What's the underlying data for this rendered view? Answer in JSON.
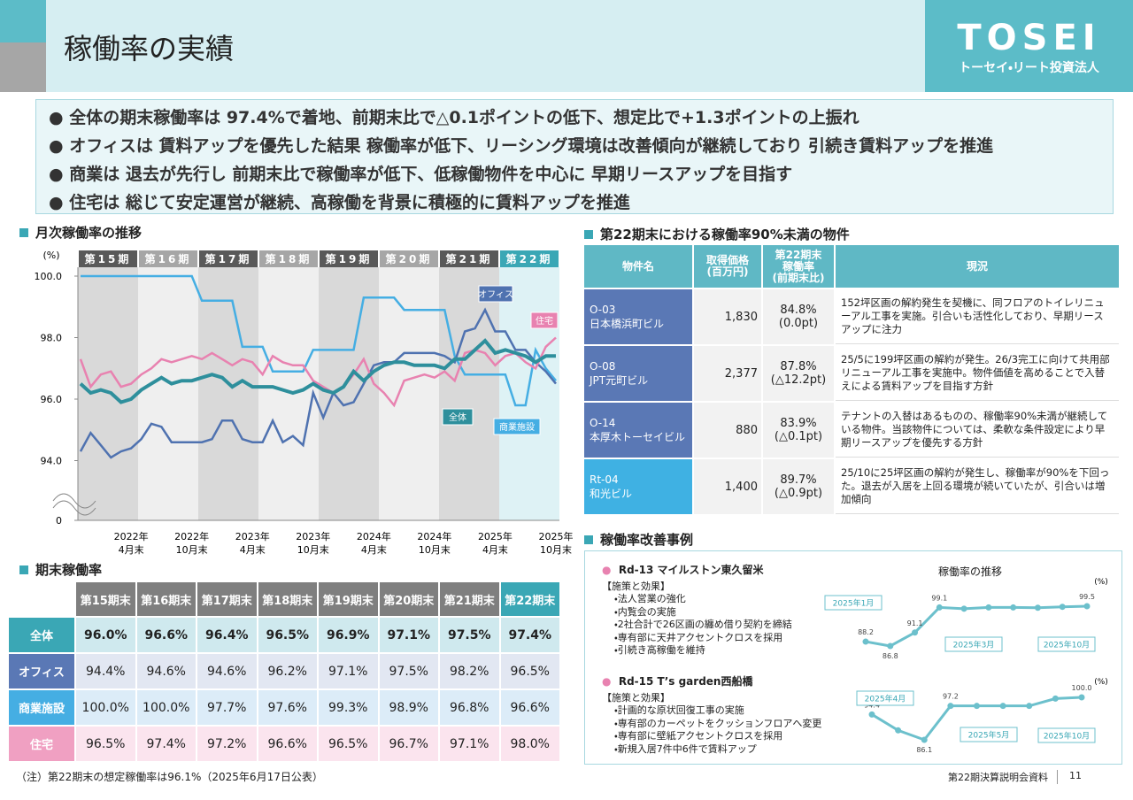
{
  "header": {
    "title": "稼働率の実績",
    "logo": "TOSEI",
    "logo_sub": "トーセイ・リート投資法人"
  },
  "bullets": [
    "全体の期末稼働率は 97.4%で着地、前期末比で△0.1ポイントの低下、想定比で+1.3ポイントの上振れ",
    "オフィスは 賃料アップを優先した結果 稼働率が低下、リーシング環境は改善傾向が継続しており 引続き賃料アップを推進",
    "商業は 退去が先行し 前期末比で稼働率が低下、低稼働物件を中心に 早期リースアップを目指す",
    "住宅は 総じて安定運営が継続、高稼働を背景に積極的に賃料アップを推進"
  ],
  "monthly_chart": {
    "type": "line",
    "title": "月次稼働率の推移",
    "y_unit": "(%)",
    "axis_break": true,
    "periods": [
      "第15期",
      "第16期",
      "第17期",
      "第18期",
      "第19期",
      "第20期",
      "第21期",
      "第22期"
    ],
    "categories": [
      null,
      null,
      null,
      null,
      null,
      "2022年\n4月末",
      null,
      null,
      null,
      null,
      null,
      "2022年\n10月末",
      null,
      null,
      null,
      null,
      null,
      "2023年\n4月末",
      null,
      null,
      null,
      null,
      null,
      "2023年\n10月末",
      null,
      null,
      null,
      null,
      null,
      "2024年\n4月末",
      null,
      null,
      null,
      null,
      null,
      "2024年\n10月末",
      null,
      null,
      null,
      null,
      null,
      "2025年\n4月末",
      null,
      null,
      null,
      null,
      null,
      "2025年\n10月末"
    ],
    "ylim": [
      92,
      100
    ],
    "yticks": [
      {
        "value": 0,
        "label": "0"
      },
      {
        "value": 94,
        "label": "94.0"
      },
      {
        "value": 96,
        "label": "96.0"
      },
      {
        "value": 98,
        "label": "98.0"
      },
      {
        "value": 100,
        "label": "100.0"
      }
    ],
    "series": [
      {
        "name": "商業施設",
        "color": "#45aee3",
        "values": [
          100,
          100,
          100,
          100,
          100,
          100,
          100,
          100,
          100,
          100,
          100,
          100,
          99.2,
          99.2,
          99.2,
          99.2,
          97.7,
          97.7,
          97.7,
          96.9,
          96.9,
          96.9,
          96.9,
          97.6,
          97.6,
          97.6,
          97.6,
          97.6,
          99.3,
          99.3,
          99.3,
          99.3,
          98.9,
          98.9,
          98.9,
          98.9,
          98.9,
          97.4,
          96.8,
          96.8,
          96.8,
          96.8,
          96.8,
          95.8,
          95.8,
          97.6,
          97.0,
          96.6
        ]
      },
      {
        "name": "オフィス",
        "color": "#4f72b0",
        "values": [
          94.3,
          94.9,
          94.5,
          94.1,
          94.3,
          94.4,
          94.7,
          95.2,
          95.1,
          94.6,
          94.6,
          94.6,
          94.6,
          94.7,
          95.3,
          95.3,
          94.7,
          94.6,
          94.6,
          95.3,
          94.6,
          94.8,
          94.5,
          96.2,
          95.4,
          96.2,
          95.8,
          95.9,
          96.5,
          97.1,
          97.2,
          97.2,
          97.5,
          97.5,
          97.5,
          97.5,
          97.4,
          97.2,
          98.2,
          98.3,
          98.9,
          98.2,
          98.2,
          97.6,
          97.6,
          97.2,
          96.9,
          96.5
        ]
      },
      {
        "name": "住宅",
        "color": "#e882b0",
        "values": [
          97.3,
          96.4,
          96.8,
          96.9,
          96.4,
          96.5,
          96.8,
          97.0,
          97.3,
          97.2,
          97.3,
          97.4,
          97.3,
          97.5,
          97.3,
          97.1,
          97.3,
          97.2,
          96.8,
          97.4,
          97.2,
          97.1,
          97.1,
          96.6,
          96.4,
          96.2,
          96.4,
          96.8,
          97.3,
          96.5,
          96.2,
          95.8,
          96.6,
          96.7,
          96.8,
          96.7,
          96.9,
          96.6,
          97.5,
          97.6,
          97.5,
          97.1,
          97.4,
          97.5,
          97.2,
          97.0,
          97.7,
          98.0
        ]
      },
      {
        "name": "全体",
        "color": "#2e8f9c",
        "values": [
          96.5,
          96.2,
          96.3,
          96.2,
          95.9,
          96.0,
          96.3,
          96.5,
          96.7,
          96.5,
          96.6,
          96.6,
          96.7,
          96.8,
          96.7,
          96.4,
          96.6,
          96.4,
          96.4,
          96.4,
          96.3,
          96.2,
          96.3,
          96.5,
          96.3,
          96.2,
          96.4,
          96.9,
          96.6,
          96.9,
          97.1,
          97.2,
          97.2,
          97.1,
          97.1,
          97.1,
          97.0,
          97.3,
          97.3,
          97.6,
          97.9,
          97.5,
          97.6,
          97.5,
          97.4,
          97.2,
          97.4,
          97.4
        ]
      }
    ]
  },
  "period_end_table": {
    "title": "期末稼働率",
    "columns": [
      "第15期末",
      "第16期末",
      "第17期末",
      "第18期末",
      "第19期末",
      "第20期末",
      "第21期末",
      "第22期末"
    ],
    "rows": [
      {
        "label": "全体",
        "values": [
          "96.0%",
          "96.6%",
          "96.4%",
          "96.5%",
          "96.9%",
          "97.1%",
          "97.5%",
          "97.4%"
        ]
      },
      {
        "label": "オフィス",
        "values": [
          "94.4%",
          "94.6%",
          "94.6%",
          "96.2%",
          "97.1%",
          "97.5%",
          "98.2%",
          "96.5%"
        ]
      },
      {
        "label": "商業施設",
        "values": [
          "100.0%",
          "100.0%",
          "97.7%",
          "97.6%",
          "99.3%",
          "98.9%",
          "96.8%",
          "96.6%"
        ]
      },
      {
        "label": "住宅",
        "values": [
          "96.5%",
          "97.4%",
          "97.2%",
          "96.6%",
          "96.5%",
          "96.7%",
          "97.1%",
          "98.0%"
        ]
      }
    ]
  },
  "low_occupancy_table": {
    "title": "第22期末における稼働率90%未満の物件",
    "columns": [
      "物件名",
      "取得価格\n(百万円)",
      "第22期末\n稼働率\n(前期末比)",
      "現況"
    ],
    "rows": [
      {
        "code": "O-03",
        "name": "日本橋浜町ビル",
        "price": "1,830",
        "rate": "84.8%",
        "change": "(0.0pt)",
        "status": "152坪区画の解約発生を契機に、同フロアのトイレリニューアル工事を実施。引合いも活性化しており、早期リースアップに注力"
      },
      {
        "code": "O-08",
        "name": "JPT元町ビル",
        "price": "2,377",
        "rate": "87.8%",
        "change": "(△12.2pt)",
        "status": "25/5に199坪区画の解約が発生。26/3完工に向けて共用部リニューアル工事を実施中。物件価値を高めることで入替えによる賃料アップを目指す方針"
      },
      {
        "code": "O-14",
        "name": "本厚木トーセイビル",
        "price": "880",
        "rate": "83.9%",
        "change": "(△0.1pt)",
        "status": "テナントの入替はあるものの、稼働率90%未満が継続している物件。当該物件については、柔軟な条件設定により早期リースアップを優先する方針"
      },
      {
        "code": "Rt-04",
        "name": "和光ビル",
        "price": "1,400",
        "rate": "89.7%",
        "change": "(△0.9pt)",
        "status": "25/10に25坪区画の解約が発生し、稼働率が90%を下回った。退去が入居を上回る環境が続いていたが、引合いは増加傾向"
      }
    ]
  },
  "improvement": {
    "title": "稼働率改善事例",
    "chart_title": "稼働率の推移",
    "cases": [
      {
        "name": "Rd-13 マイルストン東久留米",
        "measures_title": "【施策と効果】",
        "measures": [
          "・法人営業の強化",
          "・内覧会の実施",
          "・2社合計で26区画の纏め借り契約を締結",
          "・専有部に天井アクセントクロスを採用",
          "・引続き高稼働を維持"
        ],
        "chart": {
          "type": "line",
          "unit": "(%)",
          "values": [
            88.2,
            86.8,
            91.1,
            99.1,
            98.7,
            99.1,
            99.1,
            99.0,
            99.3,
            99.5
          ],
          "value_labels": [
            "88.2",
            "86.8",
            "91.1",
            "99.1",
            null,
            null,
            null,
            null,
            null,
            "99.5"
          ],
          "annotations": [
            "2025年1月",
            "2025年3月",
            "2025年10月"
          ]
        }
      },
      {
        "name": "Rd-15 T’s garden西船橋",
        "measures_title": "【施策と効果】",
        "measures": [
          "・計画的な原状回復工事の実施",
          "・専有部のカーペットをクッションフロアへ変更",
          "・専有部に壁紙アクセントクロスを採用",
          "・新規入居7件中6件で賃料アップ"
        ],
        "chart": {
          "type": "line",
          "unit": "(%)",
          "values": [
            94.4,
            89.2,
            86.1,
            97.2,
            97.2,
            97.2,
            97.2,
            99.6,
            100.0
          ],
          "value_labels": [
            "94.4",
            null,
            "86.1",
            "97.2",
            null,
            null,
            null,
            null,
            "100.0"
          ],
          "annotations": [
            "2025年4月",
            "2025年5月",
            "2025年10月"
          ]
        }
      }
    ]
  },
  "footer": {
    "note": "（注）第22期末の想定稼働率は96.1%（2025年6月17日公表）",
    "doc": "第22期決算説明会資料",
    "page": "11"
  }
}
